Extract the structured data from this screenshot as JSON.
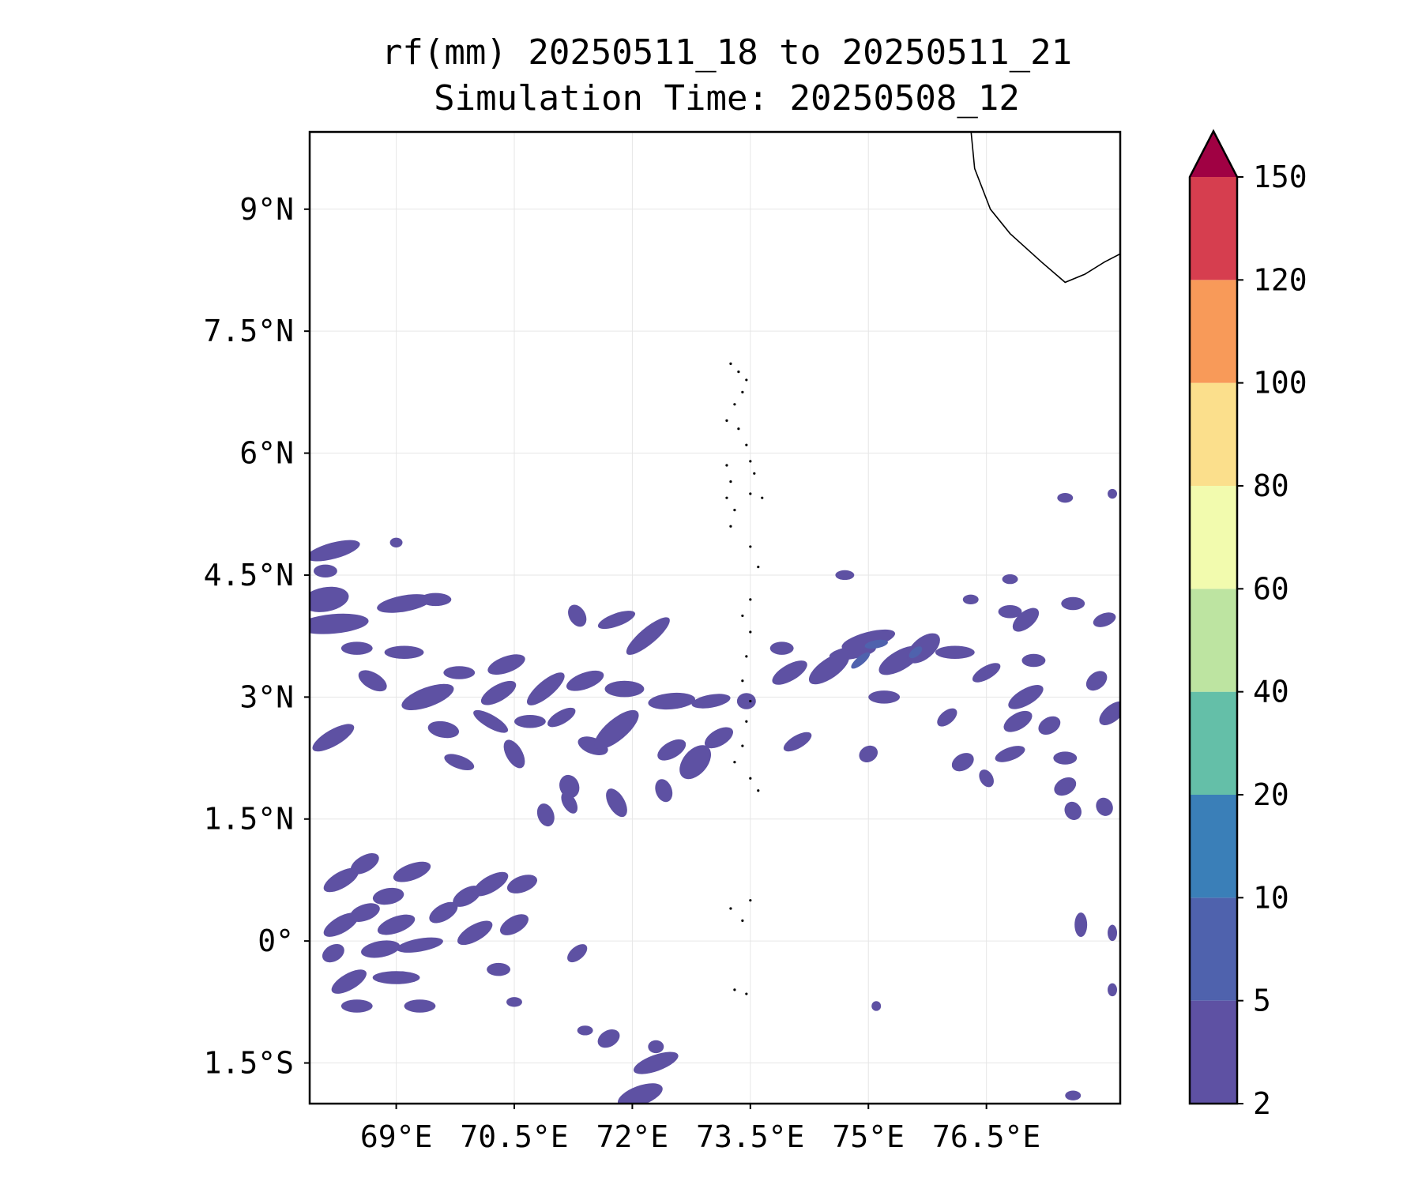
{
  "title": {
    "line1": "rf(mm) 20250511_18 to 20250511_21",
    "line2": "Simulation Time: 20250508_12"
  },
  "map": {
    "lon_range": [
      67.9,
      78.2
    ],
    "lat_range": [
      -2.0,
      9.95
    ],
    "lon_ticks": [
      {
        "value": 69.0,
        "label": "69°E"
      },
      {
        "value": 70.5,
        "label": "70.5°E"
      },
      {
        "value": 72.0,
        "label": "72°E"
      },
      {
        "value": 73.5,
        "label": "73.5°E"
      },
      {
        "value": 75.0,
        "label": "75°E"
      },
      {
        "value": 76.5,
        "label": "76.5°E"
      }
    ],
    "lat_ticks": [
      {
        "value": 9.0,
        "label": "9°N"
      },
      {
        "value": 7.5,
        "label": "7.5°N"
      },
      {
        "value": 6.0,
        "label": "6°N"
      },
      {
        "value": 4.5,
        "label": "4.5°N"
      },
      {
        "value": 3.0,
        "label": "3°N"
      },
      {
        "value": 1.5,
        "label": "1.5°N"
      },
      {
        "value": 0.0,
        "label": "0°"
      },
      {
        "value": -1.5,
        "label": "1.5°S"
      }
    ],
    "gridlines": true,
    "coastline_india": [
      [
        76.3,
        10.0
      ],
      [
        76.35,
        9.5
      ],
      [
        76.55,
        9.0
      ],
      [
        76.8,
        8.7
      ],
      [
        77.2,
        8.35
      ],
      [
        77.5,
        8.1
      ],
      [
        77.75,
        8.2
      ],
      [
        78.0,
        8.35
      ],
      [
        78.2,
        8.45
      ]
    ],
    "maldives_atolls": [
      [
        73.25,
        7.1
      ],
      [
        73.35,
        7.0
      ],
      [
        73.45,
        6.9
      ],
      [
        73.4,
        6.75
      ],
      [
        73.3,
        6.6
      ],
      [
        73.2,
        6.4
      ],
      [
        73.35,
        6.3
      ],
      [
        73.45,
        6.1
      ],
      [
        73.2,
        5.85
      ],
      [
        73.25,
        5.65
      ],
      [
        73.2,
        5.45
      ],
      [
        73.3,
        5.3
      ],
      [
        73.25,
        5.1
      ],
      [
        73.5,
        5.9
      ],
      [
        73.55,
        5.75
      ],
      [
        73.5,
        5.5
      ],
      [
        73.65,
        5.45
      ],
      [
        73.5,
        4.85
      ],
      [
        73.6,
        4.6
      ],
      [
        73.5,
        4.2
      ],
      [
        73.4,
        4.0
      ],
      [
        73.5,
        3.8
      ],
      [
        73.45,
        3.5
      ],
      [
        73.4,
        3.2
      ],
      [
        73.5,
        2.95
      ],
      [
        73.45,
        2.7
      ],
      [
        73.4,
        2.4
      ],
      [
        73.3,
        2.2
      ],
      [
        73.5,
        2.0
      ],
      [
        73.6,
        1.85
      ],
      [
        73.5,
        0.5
      ],
      [
        73.4,
        0.25
      ],
      [
        73.25,
        0.4
      ],
      [
        73.3,
        -0.6
      ],
      [
        73.45,
        -0.65
      ]
    ],
    "rain_cells": [
      [
        68.2,
        4.8,
        0.35,
        0.1,
        -15
      ],
      [
        68.1,
        4.2,
        0.3,
        0.15,
        -10
      ],
      [
        68.2,
        3.9,
        0.45,
        0.12,
        -5
      ],
      [
        68.5,
        3.6,
        0.2,
        0.08,
        0
      ],
      [
        69.1,
        4.15,
        0.35,
        0.1,
        -10
      ],
      [
        69.5,
        4.2,
        0.2,
        0.08,
        0
      ],
      [
        69.1,
        3.55,
        0.25,
        0.08,
        0
      ],
      [
        68.7,
        3.2,
        0.2,
        0.1,
        30
      ],
      [
        69.4,
        3.0,
        0.35,
        0.12,
        -20
      ],
      [
        69.8,
        3.3,
        0.2,
        0.08,
        0
      ],
      [
        70.3,
        3.05,
        0.25,
        0.1,
        -30
      ],
      [
        70.4,
        3.4,
        0.25,
        0.1,
        -20
      ],
      [
        70.9,
        3.1,
        0.3,
        0.1,
        -40
      ],
      [
        70.7,
        2.7,
        0.2,
        0.08,
        0
      ],
      [
        71.1,
        2.75,
        0.2,
        0.08,
        -30
      ],
      [
        70.2,
        2.7,
        0.25,
        0.08,
        30
      ],
      [
        69.6,
        2.6,
        0.2,
        0.1,
        10
      ],
      [
        69.8,
        2.2,
        0.2,
        0.08,
        20
      ],
      [
        68.2,
        2.5,
        0.3,
        0.1,
        -30
      ],
      [
        70.5,
        2.3,
        0.2,
        0.1,
        60
      ],
      [
        71.2,
        1.9,
        0.15,
        0.12,
        70
      ],
      [
        71.5,
        2.4,
        0.2,
        0.1,
        20
      ],
      [
        71.8,
        2.6,
        0.35,
        0.13,
        -40
      ],
      [
        71.4,
        3.2,
        0.25,
        0.1,
        -20
      ],
      [
        71.9,
        3.1,
        0.25,
        0.1,
        0
      ],
      [
        72.2,
        3.75,
        0.35,
        0.1,
        -40
      ],
      [
        71.8,
        3.95,
        0.25,
        0.08,
        -20
      ],
      [
        71.3,
        4.0,
        0.15,
        0.1,
        60
      ],
      [
        72.5,
        2.95,
        0.3,
        0.1,
        -5
      ],
      [
        73.0,
        2.95,
        0.25,
        0.08,
        -10
      ],
      [
        72.5,
        2.35,
        0.2,
        0.1,
        -30
      ],
      [
        72.4,
        1.85,
        0.15,
        0.1,
        70
      ],
      [
        71.8,
        1.7,
        0.2,
        0.1,
        60
      ],
      [
        71.2,
        1.7,
        0.15,
        0.08,
        60
      ],
      [
        70.9,
        1.55,
        0.15,
        0.1,
        70
      ],
      [
        73.45,
        2.95,
        0.12,
        0.1,
        0
      ],
      [
        73.1,
        2.5,
        0.2,
        0.1,
        -30
      ],
      [
        72.8,
        2.2,
        0.25,
        0.15,
        -50
      ],
      [
        73.9,
        3.6,
        0.15,
        0.08,
        0
      ],
      [
        74.5,
        3.35,
        0.3,
        0.12,
        -35
      ],
      [
        74.0,
        3.3,
        0.25,
        0.1,
        -30
      ],
      [
        74.8,
        3.55,
        0.3,
        0.08,
        -10
      ],
      [
        75.4,
        3.45,
        0.3,
        0.12,
        -30
      ],
      [
        75.2,
        3.0,
        0.2,
        0.08,
        0
      ],
      [
        75.0,
        3.7,
        0.35,
        0.1,
        -15
      ],
      [
        75.7,
        3.6,
        0.25,
        0.13,
        -40
      ],
      [
        76.1,
        3.55,
        0.25,
        0.08,
        0
      ],
      [
        76.5,
        3.3,
        0.2,
        0.08,
        -30
      ],
      [
        77.0,
        3.0,
        0.25,
        0.1,
        -30
      ],
      [
        77.1,
        3.45,
        0.15,
        0.08,
        0
      ],
      [
        76.9,
        2.7,
        0.2,
        0.1,
        -30
      ],
      [
        77.3,
        2.65,
        0.15,
        0.1,
        -30
      ],
      [
        76.8,
        2.3,
        0.2,
        0.08,
        -20
      ],
      [
        77.5,
        2.25,
        0.15,
        0.08,
        0
      ],
      [
        78.1,
        2.8,
        0.2,
        0.1,
        -40
      ],
      [
        77.9,
        3.2,
        0.15,
        0.1,
        -40
      ],
      [
        77.5,
        1.9,
        0.15,
        0.1,
        -30
      ],
      [
        78.0,
        1.65,
        0.12,
        0.1,
        60
      ],
      [
        77.6,
        1.6,
        0.12,
        0.1,
        60
      ],
      [
        77.0,
        3.95,
        0.2,
        0.1,
        -40
      ],
      [
        76.8,
        4.05,
        0.15,
        0.08,
        0
      ],
      [
        77.6,
        4.15,
        0.15,
        0.08,
        0
      ],
      [
        78.0,
        3.95,
        0.15,
        0.08,
        -20
      ],
      [
        76.0,
        2.75,
        0.15,
        0.08,
        -40
      ],
      [
        75.0,
        2.3,
        0.1,
        0.12,
        60
      ],
      [
        74.1,
        2.45,
        0.2,
        0.08,
        -30
      ],
      [
        76.2,
        2.2,
        0.15,
        0.1,
        -30
      ],
      [
        76.5,
        2.0,
        0.12,
        0.08,
        60
      ],
      [
        74.7,
        4.5,
        0.12,
        0.06,
        0
      ],
      [
        76.8,
        4.45,
        0.1,
        0.06,
        0
      ],
      [
        76.3,
        4.2,
        0.1,
        0.06,
        0
      ],
      [
        68.3,
        0.75,
        0.25,
        0.1,
        -30
      ],
      [
        68.6,
        0.95,
        0.2,
        0.1,
        -30
      ],
      [
        69.2,
        0.85,
        0.25,
        0.1,
        -20
      ],
      [
        68.9,
        0.55,
        0.2,
        0.1,
        -10
      ],
      [
        68.6,
        0.35,
        0.2,
        0.1,
        -20
      ],
      [
        68.3,
        0.2,
        0.25,
        0.1,
        -30
      ],
      [
        69.0,
        0.2,
        0.25,
        0.1,
        -20
      ],
      [
        69.6,
        0.35,
        0.2,
        0.1,
        -30
      ],
      [
        69.9,
        0.55,
        0.2,
        0.1,
        -30
      ],
      [
        70.2,
        0.7,
        0.25,
        0.1,
        -30
      ],
      [
        70.6,
        0.7,
        0.2,
        0.1,
        -20
      ],
      [
        70.0,
        0.1,
        0.25,
        0.1,
        -30
      ],
      [
        70.5,
        0.2,
        0.2,
        0.1,
        -30
      ],
      [
        69.3,
        -0.05,
        0.3,
        0.08,
        -10
      ],
      [
        68.8,
        -0.1,
        0.25,
        0.1,
        -10
      ],
      [
        68.2,
        -0.15,
        0.15,
        0.1,
        -30
      ],
      [
        68.4,
        -0.5,
        0.25,
        0.1,
        -30
      ],
      [
        69.0,
        -0.45,
        0.3,
        0.08,
        0
      ],
      [
        68.5,
        -0.8,
        0.2,
        0.08,
        0
      ],
      [
        69.3,
        -0.8,
        0.2,
        0.08,
        0
      ],
      [
        70.3,
        -0.35,
        0.15,
        0.08,
        0
      ],
      [
        70.5,
        -0.75,
        0.1,
        0.06,
        0
      ],
      [
        71.3,
        -0.15,
        0.15,
        0.08,
        -40
      ],
      [
        72.3,
        -1.5,
        0.3,
        0.1,
        -20
      ],
      [
        72.1,
        -1.9,
        0.3,
        0.12,
        -20
      ],
      [
        72.3,
        -1.3,
        0.1,
        0.08,
        0
      ],
      [
        71.4,
        -1.1,
        0.1,
        0.06,
        0
      ],
      [
        71.7,
        -1.2,
        0.15,
        0.1,
        -30
      ],
      [
        75.1,
        -0.8,
        0.06,
        0.06,
        0
      ],
      [
        77.5,
        5.45,
        0.1,
        0.06,
        0
      ],
      [
        78.1,
        5.5,
        0.06,
        0.06,
        0
      ],
      [
        68.1,
        4.55,
        0.15,
        0.08,
        0
      ],
      [
        69.0,
        4.9,
        0.08,
        0.06,
        0
      ],
      [
        77.7,
        0.2,
        0.08,
        0.15,
        0
      ],
      [
        78.1,
        -0.6,
        0.06,
        0.08,
        0
      ],
      [
        78.1,
        0.1,
        0.06,
        0.1,
        0
      ],
      [
        77.6,
        -1.9,
        0.1,
        0.06,
        0
      ]
    ],
    "rain_cells_core": [
      [
        74.9,
        3.45,
        0.15,
        0.05,
        -40
      ],
      [
        75.1,
        3.65,
        0.15,
        0.05,
        -10
      ],
      [
        75.6,
        3.55,
        0.1,
        0.05,
        -40
      ]
    ]
  },
  "colorbar": {
    "levels": [
      2,
      5,
      10,
      20,
      40,
      60,
      80,
      100,
      120,
      150
    ],
    "colors": [
      "#5e51a3",
      "#4f62ad",
      "#3a7fb8",
      "#64bfa8",
      "#bde4a1",
      "#f2fbae",
      "#fbdf8c",
      "#f89a59",
      "#d63e4f"
    ],
    "extend_color": "#a00143",
    "labels": [
      "2",
      "5",
      "10",
      "20",
      "40",
      "60",
      "80",
      "100",
      "120",
      "150"
    ]
  },
  "colors": {
    "rain_low": "#5e51a3",
    "rain_core": "#4f62ad",
    "coastline": "#000000",
    "grid": "#e6e6e6"
  }
}
